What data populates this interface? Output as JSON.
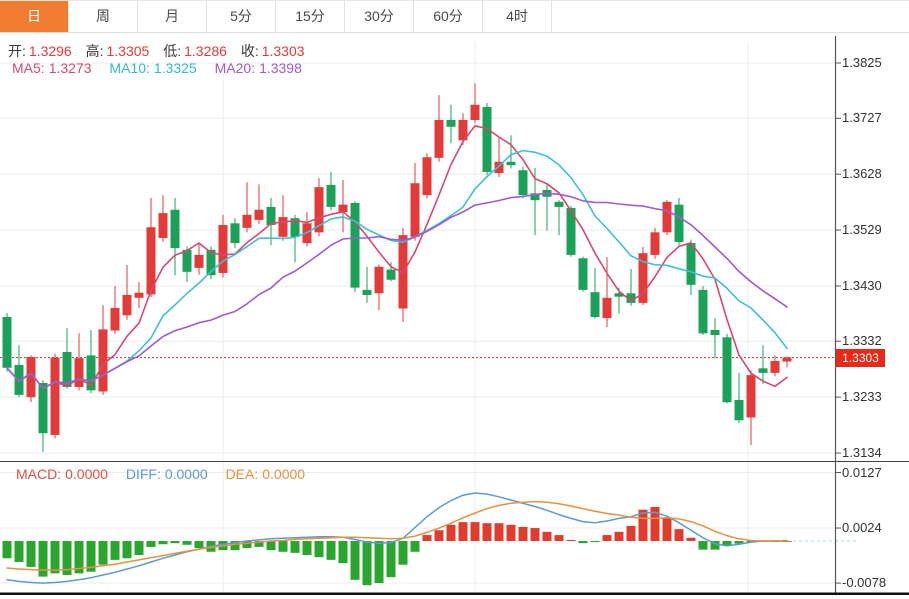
{
  "toolbar": {
    "tabs": [
      {
        "label": "日",
        "active": true
      },
      {
        "label": "周",
        "active": false
      },
      {
        "label": "月",
        "active": false
      },
      {
        "label": "5分",
        "active": false
      },
      {
        "label": "15分",
        "active": false
      },
      {
        "label": "30分",
        "active": false
      },
      {
        "label": "60分",
        "active": false
      },
      {
        "label": "4时",
        "active": false
      }
    ]
  },
  "readout": {
    "ohlc": [
      {
        "label": "开:",
        "value": "1.3296"
      },
      {
        "label": "高:",
        "value": "1.3305"
      },
      {
        "label": "低:",
        "value": "1.3286"
      },
      {
        "label": "收:",
        "value": "1.3303"
      }
    ],
    "ma": [
      {
        "label": "MA5:",
        "value": "1.3273"
      },
      {
        "label": "MA10:",
        "value": "1.3325"
      },
      {
        "label": "MA20:",
        "value": "1.3398"
      }
    ]
  },
  "macd_readout": [
    {
      "label": "MACD:",
      "value": "0.0000"
    },
    {
      "label": "DIFF:",
      "value": "0.0000"
    },
    {
      "label": "DEA:",
      "value": "0.0000"
    }
  ],
  "price_marker": {
    "value": "1.3303"
  },
  "colors": {
    "up": "#e23b3a",
    "down": "#1ca158",
    "ma5_line": "#d8486e",
    "ma10_line": "#3fc0d4",
    "ma20_line": "#a05ad2",
    "diff_line": "#5b9bd5",
    "dea_line": "#e8913f",
    "hist_up": "#e03c2e",
    "hist_down": "#2aa62e",
    "tab_active_bg": "#ef7c31",
    "grid": "#ececec",
    "axis": "#555555",
    "price_line": "#b03a2e",
    "price_tag_bg": "#e8291a",
    "zero_dash": "#9adce8"
  },
  "chart_data": {
    "type": "candlestick",
    "indicator": "MACD",
    "grid": true,
    "legend_position": "top-left-overlay",
    "y_axis_labels": [
      "1.3825",
      "1.3727",
      "1.3628",
      "1.3529",
      "1.3430",
      "1.3332",
      "1.3233",
      "1.3134"
    ],
    "price_top": 1.3825,
    "price_bottom": 1.3134,
    "macd_axis_labels": [
      "0.0127",
      "0.0024",
      "-0.0078"
    ],
    "macd_range": [
      0.0127,
      -0.0078
    ],
    "price_line": 1.3303,
    "ma_periods": [
      5,
      10,
      20
    ],
    "candles": [
      [
        1.3375,
        1.3382,
        1.3278,
        1.3285
      ],
      [
        1.329,
        1.3325,
        1.3233,
        1.3237
      ],
      [
        1.3233,
        1.3307,
        1.3224,
        1.3304
      ],
      [
        1.3258,
        1.3263,
        1.3136,
        1.3169
      ],
      [
        1.3166,
        1.331,
        1.316,
        1.3303
      ],
      [
        1.3313,
        1.3355,
        1.3248,
        1.3251
      ],
      [
        1.3251,
        1.3346,
        1.3245,
        1.3302
      ],
      [
        1.3307,
        1.3352,
        1.324,
        1.3245
      ],
      [
        1.3243,
        1.3396,
        1.3237,
        1.3353
      ],
      [
        1.3351,
        1.343,
        1.3345,
        1.3391
      ],
      [
        1.3378,
        1.3467,
        1.337,
        1.3414
      ],
      [
        1.3409,
        1.3437,
        1.3391,
        1.3418
      ],
      [
        1.3415,
        1.3586,
        1.341,
        1.3534
      ],
      [
        1.3515,
        1.3591,
        1.3508,
        1.3559
      ],
      [
        1.3565,
        1.3586,
        1.3449,
        1.3497
      ],
      [
        1.3494,
        1.35,
        1.3437,
        1.3455
      ],
      [
        1.3462,
        1.3506,
        1.345,
        1.3485
      ],
      [
        1.3494,
        1.35,
        1.3442,
        1.3449
      ],
      [
        1.3453,
        1.3556,
        1.3445,
        1.3538
      ],
      [
        1.3541,
        1.355,
        1.3497,
        1.3506
      ],
      [
        1.3533,
        1.3614,
        1.3525,
        1.3556
      ],
      [
        1.3547,
        1.361,
        1.354,
        1.3565
      ],
      [
        1.357,
        1.3586,
        1.3502,
        1.3538
      ],
      [
        1.3517,
        1.3591,
        1.351,
        1.3552
      ],
      [
        1.355,
        1.3556,
        1.3472,
        1.3517
      ],
      [
        1.3506,
        1.3561,
        1.35,
        1.3541
      ],
      [
        1.3525,
        1.3621,
        1.3518,
        1.3605
      ],
      [
        1.3609,
        1.3632,
        1.3564,
        1.357
      ],
      [
        1.3561,
        1.3618,
        1.3525,
        1.3574
      ],
      [
        1.3577,
        1.358,
        1.3419,
        1.3427
      ],
      [
        1.3423,
        1.3464,
        1.34,
        1.3414
      ],
      [
        1.3417,
        1.3468,
        1.3387,
        1.3464
      ],
      [
        1.3459,
        1.3472,
        1.3438,
        1.3441
      ],
      [
        1.339,
        1.3533,
        1.3366,
        1.352
      ],
      [
        1.3517,
        1.3648,
        1.351,
        1.3612
      ],
      [
        1.3591,
        1.3665,
        1.3585,
        1.3658
      ],
      [
        1.3657,
        1.3768,
        1.365,
        1.3724
      ],
      [
        1.3724,
        1.3751,
        1.3683,
        1.3712
      ],
      [
        1.3688,
        1.3736,
        1.368,
        1.3724
      ],
      [
        1.3724,
        1.3789,
        1.3718,
        1.3751
      ],
      [
        1.3747,
        1.3754,
        1.3627,
        1.3632
      ],
      [
        1.363,
        1.3694,
        1.3623,
        1.365
      ],
      [
        1.365,
        1.3697,
        1.3638,
        1.3644
      ],
      [
        1.3635,
        1.3641,
        1.3585,
        1.3591
      ],
      [
        1.3594,
        1.3639,
        1.352,
        1.3582
      ],
      [
        1.36,
        1.361,
        1.3528,
        1.3588
      ],
      [
        1.3579,
        1.3582,
        1.352,
        1.357
      ],
      [
        1.3568,
        1.3572,
        1.3482,
        1.3485
      ],
      [
        1.3479,
        1.3482,
        1.342,
        1.3423
      ],
      [
        1.3419,
        1.3462,
        1.3372,
        1.3375
      ],
      [
        1.3373,
        1.3481,
        1.3357,
        1.3409
      ],
      [
        1.3417,
        1.3427,
        1.3381,
        1.3411
      ],
      [
        1.3417,
        1.346,
        1.3395,
        1.34
      ],
      [
        1.34,
        1.3499,
        1.3396,
        1.3488
      ],
      [
        1.3485,
        1.3533,
        1.3478,
        1.3525
      ],
      [
        1.3525,
        1.3582,
        1.352,
        1.3579
      ],
      [
        1.3574,
        1.3586,
        1.3502,
        1.3508
      ],
      [
        1.3506,
        1.3512,
        1.3414,
        1.3432
      ],
      [
        1.3423,
        1.343,
        1.3343,
        1.3346
      ],
      [
        1.3352,
        1.3373,
        1.3302,
        1.3343
      ],
      [
        1.3339,
        1.3345,
        1.3222,
        1.3224
      ],
      [
        1.3228,
        1.3276,
        1.3187,
        1.3192
      ],
      [
        1.3197,
        1.328,
        1.3148,
        1.3272
      ],
      [
        1.3284,
        1.3325,
        1.3256,
        1.3276
      ],
      [
        1.3276,
        1.3307,
        1.327,
        1.3297
      ],
      [
        1.3296,
        1.3305,
        1.3286,
        1.3303
      ]
    ],
    "macd_hist": [
      -0.0032,
      -0.0039,
      -0.0048,
      -0.0066,
      -0.006,
      -0.0063,
      -0.006,
      -0.0057,
      -0.0044,
      -0.0035,
      -0.0032,
      -0.0026,
      -0.0011,
      -0.0006,
      -0.0004,
      -0.0007,
      -0.0013,
      -0.002,
      -0.0017,
      -0.0017,
      -0.0013,
      -0.0011,
      -0.0017,
      -0.002,
      -0.0022,
      -0.0026,
      -0.003,
      -0.0035,
      -0.0041,
      -0.0072,
      -0.0082,
      -0.0078,
      -0.0067,
      -0.0044,
      -0.002,
      0.0011,
      0.002,
      0.003,
      0.0035,
      0.0035,
      0.0033,
      0.0033,
      0.003,
      0.0026,
      0.0024,
      0.0017,
      0.0011,
      0.0002,
      -0.0004,
      -0.0002,
      0.0011,
      0.0017,
      0.0028,
      0.0058,
      0.0063,
      0.0043,
      0.0022,
      0.0006,
      -0.0016,
      -0.0016,
      -0.0008,
      -0.0005,
      -0.0002,
      0.0,
      0.0,
      0.0
    ],
    "diff": [
      -0.0072,
      -0.0075,
      -0.0077,
      -0.0078,
      -0.0077,
      -0.0075,
      -0.0072,
      -0.0068,
      -0.0063,
      -0.0058,
      -0.0052,
      -0.0046,
      -0.0039,
      -0.0032,
      -0.0026,
      -0.002,
      -0.0015,
      -0.001,
      -0.0006,
      -0.0003,
      0.0,
      0.0002,
      0.0004,
      0.0005,
      0.0006,
      0.0007,
      0.0008,
      0.0008,
      0.0007,
      0.0003,
      -0.0002,
      -0.0004,
      -0.0003,
      0.0005,
      0.0025,
      0.0045,
      0.0062,
      0.0075,
      0.0085,
      0.0089,
      0.0087,
      0.0082,
      0.0076,
      0.007,
      0.0064,
      0.0057,
      0.0049,
      0.0042,
      0.0036,
      0.0034,
      0.0037,
      0.0042,
      0.0045,
      0.0052,
      0.0053,
      0.0046,
      0.0034,
      0.002,
      0.0006,
      -0.0005,
      -0.0009,
      -0.0006,
      -0.0002,
      0.0,
      0.0,
      0.0001
    ],
    "dea": [
      -0.005,
      -0.0052,
      -0.0053,
      -0.0054,
      -0.0054,
      -0.0053,
      -0.0051,
      -0.0049,
      -0.0046,
      -0.0043,
      -0.0039,
      -0.0035,
      -0.0031,
      -0.0027,
      -0.0023,
      -0.0019,
      -0.0015,
      -0.0012,
      -0.0009,
      -0.0006,
      -0.0004,
      -0.0002,
      0.0,
      0.0001,
      0.0003,
      0.0004,
      0.0005,
      0.0006,
      0.0007,
      0.0007,
      0.0006,
      0.0005,
      0.0004,
      0.0005,
      0.0009,
      0.0016,
      0.0024,
      0.0033,
      0.0043,
      0.0052,
      0.006,
      0.0066,
      0.007,
      0.0072,
      0.0073,
      0.0072,
      0.0069,
      0.0065,
      0.006,
      0.0055,
      0.0051,
      0.0048,
      0.0044,
      0.0042,
      0.0042,
      0.0043,
      0.0041,
      0.0036,
      0.0028,
      0.0018,
      0.001,
      0.0004,
      0.0001,
      0.0,
      0.0,
      0.0
    ]
  }
}
